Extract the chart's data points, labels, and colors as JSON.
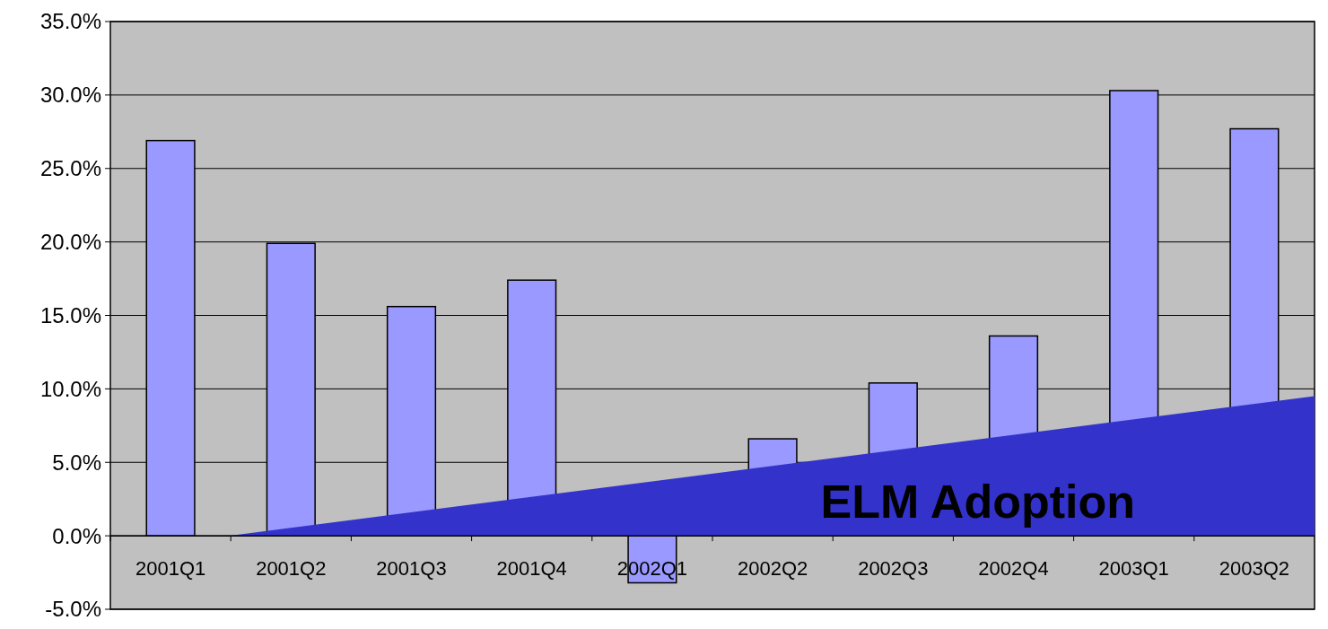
{
  "chart_data": {
    "type": "bar",
    "categories": [
      "2001Q1",
      "2001Q2",
      "2001Q3",
      "2001Q4",
      "2002Q1",
      "2002Q2",
      "2002Q3",
      "2002Q4",
      "2003Q1",
      "2003Q2"
    ],
    "values": [
      26.9,
      19.9,
      15.6,
      17.4,
      -3.2,
      6.6,
      10.4,
      13.6,
      30.3,
      27.7
    ],
    "color": "#9999ff",
    "ylim": [
      -5,
      35
    ],
    "yticks": [
      {
        "value": -5,
        "label": "-5.0%"
      },
      {
        "value": 0,
        "label": "0.0%"
      },
      {
        "value": 5,
        "label": "5.0%"
      },
      {
        "value": 10,
        "label": "10.0%"
      },
      {
        "value": 15,
        "label": "15.0%"
      },
      {
        "value": 20,
        "label": "20.0%"
      },
      {
        "value": 25,
        "label": "25.0%"
      },
      {
        "value": 30,
        "label": "30.0%"
      },
      {
        "value": 35,
        "label": "35.0%"
      }
    ],
    "grid": "y",
    "annotations": [
      "ELM Adoption"
    ]
  }
}
